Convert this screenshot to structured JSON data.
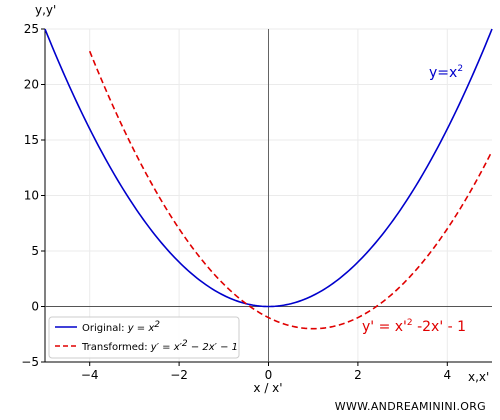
{
  "chart_data": {
    "type": "line",
    "xlim": [
      -5,
      5
    ],
    "ylim": [
      -5,
      25
    ],
    "x_ticks": [
      -4,
      -2,
      0,
      2,
      4
    ],
    "y_ticks": [
      -5,
      0,
      5,
      10,
      15,
      20,
      25
    ],
    "x_tick_labels": [
      "−4",
      "−2",
      "0",
      "2",
      "4"
    ],
    "y_tick_labels": [
      "−5",
      "0",
      "5",
      "10",
      "15",
      "20",
      "25"
    ],
    "xlabel": "x / x'",
    "x_axis_end_label": "x,x'",
    "y_axis_top_label": "y,y'",
    "grid": true,
    "legend_placement": "lower-left",
    "series": [
      {
        "name": "Original: y = x²",
        "legend_main": "Original: ",
        "legend_math": "y = x",
        "legend_sup": "2",
        "color": "#0000cc",
        "style": "solid",
        "formula": "x^2",
        "x_range": [
          -5,
          5
        ],
        "sample_points": [
          [
            -5,
            25
          ],
          [
            -4,
            16
          ],
          [
            -3,
            9
          ],
          [
            -2,
            4
          ],
          [
            -1,
            1
          ],
          [
            0,
            0
          ],
          [
            1,
            1
          ],
          [
            2,
            4
          ],
          [
            3,
            9
          ],
          [
            4,
            16
          ],
          [
            5,
            25
          ]
        ]
      },
      {
        "name": "Transformed: y' = x'² − 2x' − 1",
        "legend_main": "Transformed: ",
        "legend_math_a": "y′ = x′",
        "legend_sup": "2",
        "legend_math_b": " − 2x′ − 1",
        "color": "#e00000",
        "style": "dashed",
        "formula": "x^2-2x-1",
        "x_range": [
          -4,
          5
        ],
        "sample_points": [
          [
            -4,
            23
          ],
          [
            -3,
            14
          ],
          [
            -2,
            7
          ],
          [
            -1,
            2
          ],
          [
            0,
            -1
          ],
          [
            1,
            -2
          ],
          [
            2,
            -1
          ],
          [
            3,
            2
          ],
          [
            4,
            7
          ],
          [
            5,
            14
          ]
        ]
      }
    ],
    "annotations": [
      {
        "id": "blue",
        "text_main": "y=x",
        "text_sup": "2",
        "x": 3.6,
        "y": 20.8,
        "color": "#0000cc"
      },
      {
        "id": "red",
        "text_a": "y' = x'",
        "text_sup": "2",
        "text_b": " -2x' - 1",
        "x": 2.1,
        "y": -2.5,
        "color": "#e00000"
      }
    ]
  },
  "watermark": "WWW.ANDREAMININI.ORG"
}
